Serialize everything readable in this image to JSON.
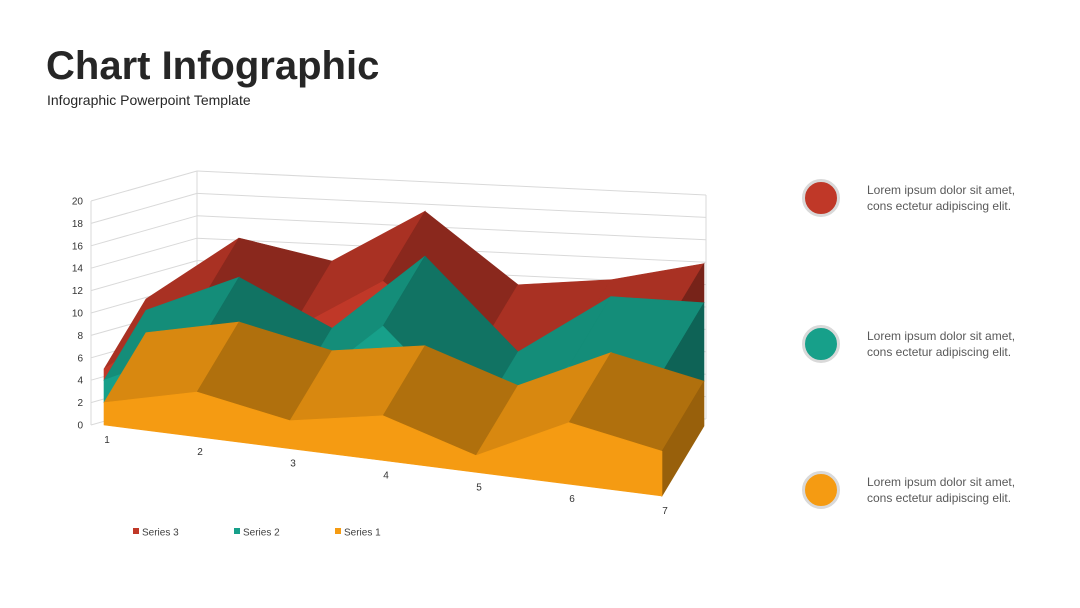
{
  "header": {
    "title": "Chart Infographic",
    "subtitle": "Infographic Powerpoint Template"
  },
  "chart_data": {
    "type": "area",
    "subtype": "3d-stacked-area",
    "categories": [
      "1",
      "2",
      "3",
      "4",
      "5",
      "6",
      "7"
    ],
    "series": [
      {
        "name": "Series 1",
        "color": "#f59b12",
        "values": [
          2,
          4,
          2.5,
          4,
          1.5,
          5.5,
          4
        ]
      },
      {
        "name": "Series 2",
        "color": "#17a08a",
        "values": [
          2,
          4,
          2,
          8,
          3,
          5,
          7
        ]
      },
      {
        "name": "Series 3",
        "color": "#c03828",
        "values": [
          1,
          3.5,
          6,
          4,
          6,
          1.5,
          3.5
        ]
      }
    ],
    "ylim": [
      0,
      20
    ],
    "yticks": [
      0,
      2,
      4,
      6,
      8,
      10,
      12,
      14,
      16,
      18,
      20
    ],
    "grid": true,
    "legend_position": "bottom-left",
    "legend_order": [
      "Series 3",
      "Series 2",
      "Series 1"
    ]
  },
  "side_items": [
    {
      "color": "#c03828",
      "line1": "Lorem ipsum dolor sit amet,",
      "line2": "cons ectetur adipiscing elit."
    },
    {
      "color": "#17a08a",
      "line1": "Lorem ipsum dolor sit amet,",
      "line2": "cons ectetur adipiscing elit."
    },
    {
      "color": "#f59b12",
      "line1": "Lorem ipsum dolor sit amet,",
      "line2": "cons ectetur adipiscing elit."
    }
  ]
}
